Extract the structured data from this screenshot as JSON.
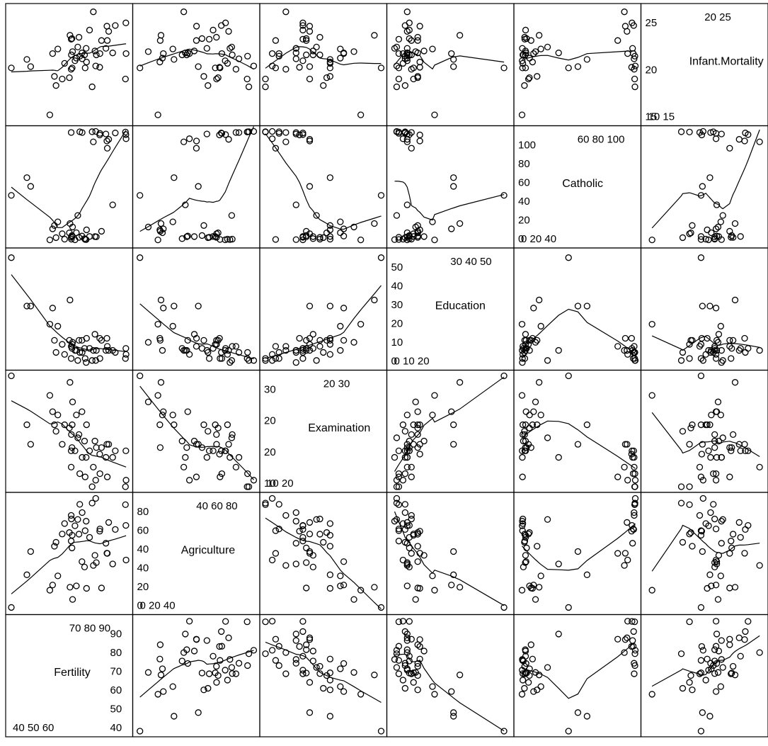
{
  "chart_data": {
    "type": "scatter",
    "title": "",
    "variables": [
      {
        "name": "Fertility",
        "range": [
          35,
          93
        ],
        "ticks_bottom": [
          "40",
          "50",
          "60"
        ],
        "ticks_top": [
          "70",
          "80",
          "90"
        ],
        "ticks_right_left": [
          "90",
          "80",
          "70",
          "60",
          "50",
          "40"
        ]
      },
      {
        "name": "Agriculture",
        "range": [
          0,
          90
        ],
        "ticks_bottom": [
          "0",
          "20",
          "40"
        ],
        "ticks_top": [
          "40",
          "60",
          "80"
        ],
        "ticks_left": [
          "80",
          "60",
          "40",
          "40",
          "20",
          "0"
        ]
      },
      {
        "name": "Examination",
        "range": [
          3,
          37
        ],
        "ticks_bottom": [
          "10",
          "20"
        ],
        "ticks_top": [
          "20",
          "30"
        ],
        "ticks_left": [
          "30",
          "20"
        ]
      },
      {
        "name": "Education",
        "range": [
          0,
          55
        ],
        "ticks_bottom": [
          "0",
          "10",
          "20"
        ],
        "ticks_top": [
          "30",
          "40",
          "50"
        ],
        "ticks_left": [
          "50",
          "40",
          "30",
          "20",
          "10",
          "0"
        ]
      },
      {
        "name": "Catholic",
        "range": [
          0,
          100
        ],
        "ticks_bottom": [
          "0",
          "20",
          "40"
        ],
        "ticks_top": [
          "60",
          "80",
          "100"
        ],
        "ticks_left": [
          "100",
          "80",
          "60",
          "40",
          "20",
          "0"
        ]
      },
      {
        "name": "Infant.Mortality",
        "range": [
          10,
          27
        ],
        "ticks_bottom": [
          "10",
          "15"
        ],
        "ticks_top": [
          "20",
          "25"
        ],
        "ticks_left": [
          "25",
          "20",
          "15"
        ]
      }
    ],
    "diag_labels": {
      "Fertility": {
        "bottom": "40 50 60",
        "top": "70 80 90",
        "right": [
          "90",
          "80",
          "70",
          "60",
          "50",
          "40"
        ]
      },
      "Agriculture": {
        "bottom": "0  20  40",
        "top": "40  60  80",
        "left": [
          "80",
          "60",
          "40",
          "40",
          "20",
          "0"
        ]
      },
      "Examination": {
        "bottom": "10    20",
        "top": "20    30",
        "left": [
          "30",
          "20",
          "20",
          "10"
        ]
      },
      "Education": {
        "bottom": "0  10  20",
        "top": "30  40  50",
        "left": [
          "50",
          "40",
          "30",
          "20",
          "10",
          "0"
        ]
      },
      "Catholic": {
        "bottom": "0   20  40",
        "top": "60  80 100",
        "left": [
          "100",
          "80",
          "60",
          "40",
          "20",
          "0"
        ]
      },
      "Infant.Mortality": {
        "bottom": "10    15",
        "top": "20    25",
        "left": [
          "25",
          "20",
          "15"
        ]
      }
    },
    "observations": [
      [
        80.2,
        17,
        15,
        12,
        9.96,
        22.2
      ],
      [
        83.1,
        45.1,
        6,
        9,
        84.84,
        22.2
      ],
      [
        92.5,
        39.7,
        5,
        5,
        93.4,
        20.2
      ],
      [
        85.8,
        36.5,
        12,
        7,
        33.77,
        20.3
      ],
      [
        76.9,
        43.5,
        17,
        15,
        5.16,
        20.6
      ],
      [
        76.1,
        35.3,
        9,
        7,
        90.57,
        26.6
      ],
      [
        83.8,
        70.2,
        16,
        7,
        92.85,
        23.6
      ],
      [
        92.4,
        67.8,
        14,
        8,
        97.16,
        24.9
      ],
      [
        82.4,
        53.3,
        12,
        7,
        97.67,
        21
      ],
      [
        82.9,
        45.2,
        16,
        13,
        91.38,
        24.4
      ],
      [
        87.1,
        64.5,
        14,
        6,
        98.61,
        24.5
      ],
      [
        64.1,
        62,
        21,
        12,
        8.52,
        16.5
      ],
      [
        66.9,
        67.5,
        14,
        7,
        2.27,
        19.1
      ],
      [
        68.9,
        60.7,
        19,
        12,
        4.43,
        22.7
      ],
      [
        61.7,
        69.3,
        22,
        5,
        2.82,
        18.7
      ],
      [
        68.3,
        72.6,
        18,
        2,
        24.2,
        21.2
      ],
      [
        71.7,
        34,
        17,
        8,
        3.3,
        20
      ],
      [
        55.7,
        19.4,
        26,
        28,
        12.11,
        20.2
      ],
      [
        54.3,
        15.2,
        31,
        20,
        2.15,
        10.8
      ],
      [
        65.1,
        73,
        19,
        9,
        2.84,
        20
      ],
      [
        65.5,
        59.8,
        22,
        10,
        5.23,
        18
      ],
      [
        65,
        55.1,
        14,
        3,
        4.52,
        22.4
      ],
      [
        56.6,
        50.9,
        22,
        12,
        15.14,
        16.7
      ],
      [
        57.4,
        54.1,
        20,
        6,
        4.2,
        15.3
      ],
      [
        72.5,
        71.2,
        12,
        1,
        2.4,
        21
      ],
      [
        74.2,
        58.1,
        14,
        8,
        5.23,
        23.8
      ],
      [
        72,
        63.5,
        6,
        3,
        2.56,
        18
      ],
      [
        60.5,
        60.8,
        16,
        10,
        7.72,
        16.3
      ],
      [
        58.3,
        26.8,
        25,
        19,
        18.46,
        20.9
      ],
      [
        65.4,
        49.5,
        15,
        8,
        6.1,
        22.5
      ],
      [
        75.5,
        85.9,
        3,
        2,
        99.71,
        15.1
      ],
      [
        69.3,
        84.9,
        7,
        6,
        99.68,
        19.8
      ],
      [
        77.3,
        89.7,
        5,
        2,
        100,
        18.3
      ],
      [
        70.5,
        78.2,
        12,
        6,
        98.96,
        19.4
      ],
      [
        79.4,
        64.9,
        7,
        3,
        98.22,
        20.2
      ],
      [
        65,
        75.9,
        9,
        9,
        99.06,
        17.8
      ],
      [
        92.2,
        84.6,
        3,
        3,
        99.46,
        16.3
      ],
      [
        79.3,
        63.1,
        13,
        13,
        96.83,
        18.1
      ],
      [
        70.4,
        38.4,
        26,
        12,
        5.62,
        20.3
      ],
      [
        65.7,
        7.7,
        29,
        11,
        13.79,
        20.5
      ],
      [
        72.7,
        16.7,
        22,
        13,
        11.22,
        18.9
      ],
      [
        64.4,
        17.6,
        35,
        32,
        16.92,
        23
      ],
      [
        77.6,
        37.6,
        15,
        7,
        4.97,
        20
      ],
      [
        67.6,
        18.7,
        25,
        7,
        8.65,
        19.5
      ],
      [
        35,
        1.2,
        37,
        53,
        42.34,
        18
      ],
      [
        44.7,
        46.6,
        16,
        29,
        50.43,
        18.2
      ],
      [
        42.8,
        27.7,
        22,
        29,
        58.33,
        19.3
      ]
    ]
  }
}
